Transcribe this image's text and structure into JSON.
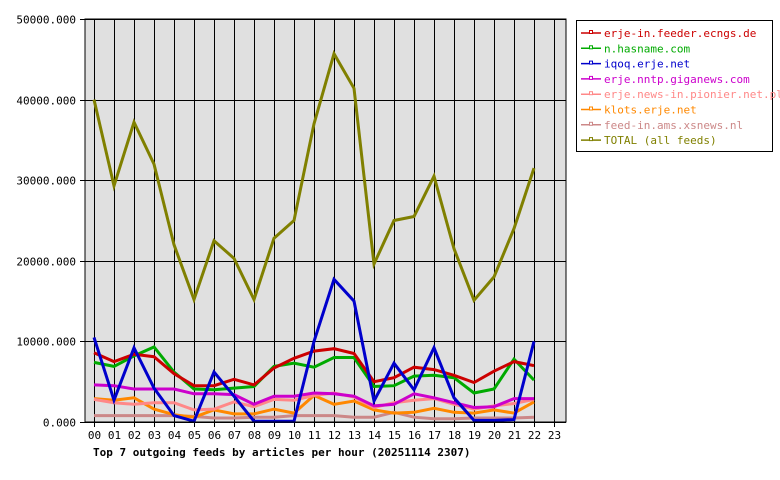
{
  "chart_data": {
    "type": "line",
    "title": "Top 7 outgoing feeds by articles per hour (20251114 2307)",
    "xlabel": "",
    "ylabel": "",
    "ylim": [
      0,
      50000
    ],
    "grid": true,
    "legend_position": "right",
    "y_ticks": [
      "0.000",
      "10000.000",
      "20000.000",
      "30000.000",
      "40000.000",
      "50000.000"
    ],
    "x": [
      "00",
      "01",
      "02",
      "03",
      "04",
      "05",
      "06",
      "07",
      "08",
      "09",
      "10",
      "11",
      "12",
      "13",
      "14",
      "15",
      "16",
      "17",
      "18",
      "19",
      "20",
      "21",
      "22",
      "23"
    ],
    "series": [
      {
        "name": "erje-in.feeder.ecngs.de",
        "color": "#cc0000",
        "values": [
          8600,
          7500,
          8400,
          8100,
          6000,
          4500,
          4500,
          5300,
          4600,
          6700,
          7900,
          8800,
          9100,
          8500,
          5000,
          5500,
          6800,
          6500,
          5800,
          4900,
          6300,
          7500,
          7000
        ]
      },
      {
        "name": "n.hasname.com",
        "color": "#00aa00",
        "values": [
          7400,
          6900,
          8200,
          9300,
          6200,
          4100,
          4000,
          4200,
          4400,
          6900,
          7300,
          6800,
          8000,
          8000,
          4400,
          4500,
          5700,
          5800,
          5500,
          3600,
          4100,
          7800,
          5200
        ]
      },
      {
        "name": "iqoq.erje.net",
        "color": "#0000cc",
        "values": [
          10500,
          2700,
          9200,
          4200,
          800,
          100,
          6200,
          3200,
          100,
          100,
          100,
          10000,
          17700,
          15000,
          2600,
          7300,
          4000,
          9200,
          3000,
          200,
          200,
          300,
          10000
        ]
      },
      {
        "name": "erje.nntp.giganews.com",
        "color": "#cc00cc",
        "values": [
          4600,
          4500,
          4100,
          4100,
          4100,
          3500,
          3500,
          3400,
          2200,
          3200,
          3200,
          3600,
          3500,
          3200,
          2000,
          2200,
          3500,
          3000,
          2400,
          1800,
          1900,
          2900,
          2900
        ]
      },
      {
        "name": "erje.news-in.pionier.net.pl",
        "color": "#ff8888",
        "values": [
          2800,
          2400,
          2200,
          2400,
          2400,
          1500,
          1600,
          2500,
          1900,
          2800,
          2700,
          3300,
          3600,
          3100,
          1800,
          2400,
          2700,
          2900,
          2200,
          1600,
          2000,
          2300,
          2800
        ]
      },
      {
        "name": "klots.erje.net",
        "color": "#ff8800",
        "values": [
          2900,
          2700,
          3000,
          1600,
          900,
          600,
          1500,
          1000,
          1000,
          1600,
          1100,
          3300,
          2200,
          2600,
          1500,
          1100,
          1200,
          1700,
          1200,
          1100,
          1500,
          1100,
          2500
        ]
      },
      {
        "name": "feed-in.ams.xsnews.nl",
        "color": "#cc8888",
        "values": [
          800,
          800,
          800,
          800,
          800,
          700,
          500,
          500,
          600,
          600,
          800,
          800,
          800,
          600,
          600,
          1200,
          600,
          400,
          400,
          500,
          500,
          500,
          600
        ]
      },
      {
        "name": "TOTAL (all feeds)",
        "color": "#808000",
        "values": [
          40000,
          29300,
          37200,
          32000,
          22000,
          15200,
          22500,
          20300,
          15200,
          22800,
          25000,
          37000,
          45700,
          41400,
          19600,
          25000,
          25500,
          30500,
          21500,
          15100,
          18000,
          24000,
          31500
        ]
      }
    ]
  },
  "colors": {
    "plot_background": "#e0e0e0",
    "grid": "#000000",
    "frame": "#000000"
  }
}
